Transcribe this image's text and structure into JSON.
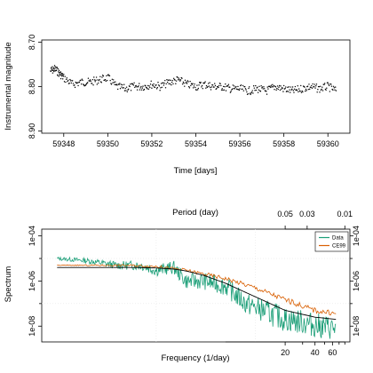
{
  "chart_data": [
    {
      "type": "scatter",
      "xlabel": "Time [days]",
      "ylabel": "Instrumental magnitude",
      "xlim": [
        59347.0,
        59361.0
      ],
      "ylim": [
        8.905,
        8.695
      ],
      "yreversed": true,
      "xticks": [
        59348,
        59350,
        59352,
        59354,
        59356,
        59358,
        59360
      ],
      "yticks": [
        8.7,
        8.8,
        8.9
      ],
      "xtick_labels": [
        "59348",
        "59350",
        "59352",
        "59354",
        "59356",
        "59358",
        "59360"
      ],
      "ytick_labels": [
        "8.70",
        "8.80",
        "8.90"
      ],
      "marker_color": "#000000",
      "series": [
        {
          "x": [
            59347.4,
            59347.6,
            59347.8,
            59348.0,
            59348.4,
            59348.8,
            59349.2,
            59349.6,
            59350.0,
            59350.4,
            59350.8,
            59351.2,
            59351.6,
            59352.0,
            59352.4,
            59352.8,
            59353.2,
            59353.6,
            59354.0,
            59354.4,
            59354.8,
            59355.2,
            59355.6,
            59356.0,
            59356.4,
            59356.8,
            59357.2,
            59357.6,
            59358.0,
            59358.4,
            59358.8,
            59359.2,
            59359.6,
            59360.0,
            59360.4
          ],
          "y": [
            8.765,
            8.76,
            8.77,
            8.78,
            8.795,
            8.79,
            8.79,
            8.785,
            8.78,
            8.8,
            8.805,
            8.8,
            8.8,
            8.795,
            8.8,
            8.79,
            8.785,
            8.795,
            8.8,
            8.795,
            8.8,
            8.8,
            8.805,
            8.805,
            8.81,
            8.805,
            8.81,
            8.8,
            8.805,
            8.81,
            8.805,
            8.8,
            8.805,
            8.8,
            8.81
          ]
        }
      ]
    },
    {
      "type": "line",
      "xlabel": "Frequency (1/day)",
      "ylabel": "Spectrum",
      "top_xlabel": "Period (day)",
      "xscale": "log",
      "yscale": "log",
      "xlim": [
        0.07,
        90
      ],
      "ylim": [
        2e-09,
        0.0002
      ],
      "xticks": [
        20,
        40,
        60
      ],
      "xtick_labels": [
        "20",
        "40",
        "60"
      ],
      "yticks": [
        0.0001,
        1e-06,
        1e-08
      ],
      "ytick_labels": [
        "1e-04",
        "1e-06",
        "1e-08"
      ],
      "minor_yticks": [
        1e-05,
        1e-07
      ],
      "right_ytick_labels": [
        "1e-04",
        "1e-06",
        "1e-08"
      ],
      "top_ticks": [
        20,
        33.333,
        100
      ],
      "top_tick_labels": [
        "0.05",
        "0.03",
        "0.01"
      ],
      "legend_position": "top-right",
      "series": [
        {
          "name": "Data",
          "color": "#1b9e77",
          "x": [
            0.1,
            0.2,
            0.4,
            0.7,
            1.0,
            1.5,
            2.0,
            3.0,
            5.0,
            8.0,
            12.0,
            20.0,
            30.0,
            45.0,
            65.0
          ],
          "y": [
            1e-05,
            8e-06,
            5e-06,
            5e-06,
            3e-06,
            4e-06,
            1e-06,
            1e-06,
            6e-07,
            1e-07,
            5e-08,
            2e-08,
            1.5e-08,
            1e-08,
            8e-09
          ]
        },
        {
          "name": "CE99",
          "color": "#d95f02",
          "x": [
            0.1,
            0.2,
            0.5,
            1.0,
            2.0,
            5.0,
            10.0,
            20.0,
            40.0,
            65.0
          ],
          "y": [
            5e-06,
            5e-06,
            5e-06,
            4.5e-06,
            3e-06,
            1.3e-06,
            5e-07,
            1.5e-07,
            5e-08,
            3.5e-08
          ]
        },
        {
          "color": "#000000",
          "x": [
            0.1,
            0.3,
            0.6,
            1.0,
            1.5,
            2.0,
            3.0,
            5.0,
            10.0,
            20.0,
            40.0,
            65.0
          ],
          "y": [
            4e-06,
            4e-06,
            4e-06,
            3.8e-06,
            3.4e-06,
            2.8e-06,
            1.8e-06,
            8e-07,
            2e-07,
            5e-08,
            2.5e-08,
            2e-08
          ]
        }
      ]
    }
  ]
}
